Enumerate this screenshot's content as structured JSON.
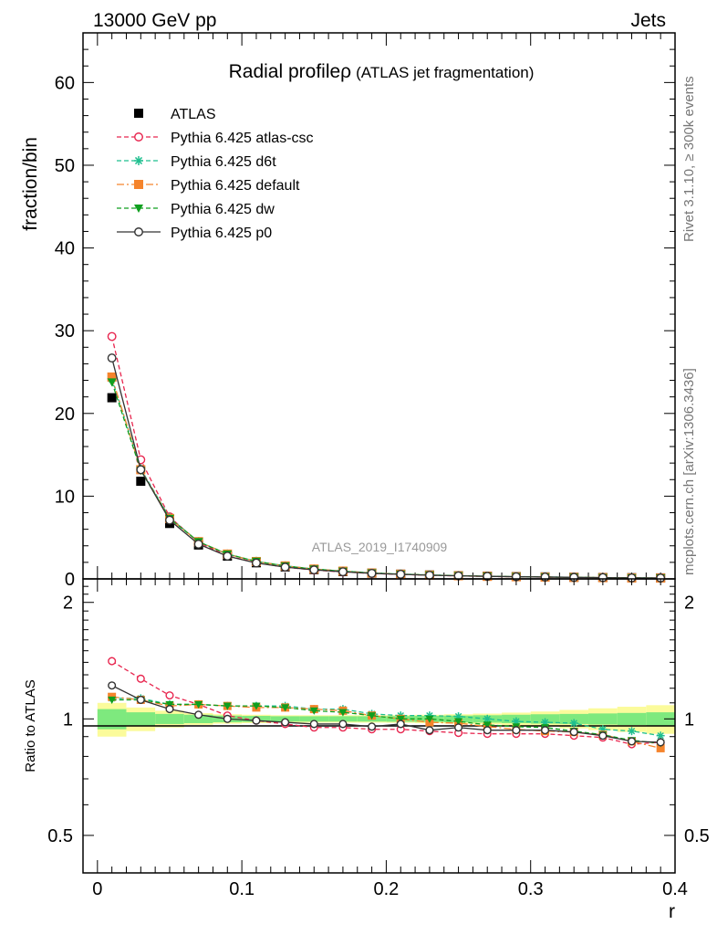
{
  "header": {
    "left": "13000 GeV pp",
    "right": "Jets"
  },
  "side_labels": {
    "rivet": "Rivet 3.1.10, ≥ 300k events",
    "mcplots": "mcplots.cern.ch [arXiv:1306.3436]"
  },
  "analysis_id": "ATLAS_2019_I1740909",
  "chart_data": [
    {
      "panel": "main",
      "type": "line",
      "title": "Radial profile",
      "title_symbol": "ρ",
      "title_suffix": "(ATLAS jet fragmentation)",
      "ylabel": "fraction/bin",
      "ylim": [
        0,
        66
      ],
      "yticks": [
        0,
        10,
        20,
        30,
        40,
        50,
        60
      ],
      "xlim": [
        -0.01,
        0.4
      ],
      "x": [
        0.01,
        0.03,
        0.05,
        0.07,
        0.09,
        0.11,
        0.13,
        0.15,
        0.17,
        0.19,
        0.21,
        0.23,
        0.25,
        0.27,
        0.29,
        0.31,
        0.33,
        0.35,
        0.37,
        0.39
      ],
      "legend_position": "top-left",
      "series": [
        {
          "name": "ATLAS",
          "color": "#000000",
          "marker": "square",
          "line": "none",
          "values": [
            21.9,
            11.8,
            6.7,
            4.1,
            2.75,
            1.95,
            1.45,
            1.12,
            0.88,
            0.7,
            0.57,
            0.47,
            0.39,
            0.33,
            0.28,
            0.24,
            0.2,
            0.17,
            0.14,
            0.12
          ]
        },
        {
          "name": "Pythia 6.425 atlas-csc",
          "color": "#e8264f",
          "marker": "open-circle",
          "line": "dashed",
          "values": [
            29.3,
            14.4,
            7.5,
            4.4,
            2.8,
            1.95,
            1.42,
            1.07,
            0.84,
            0.66,
            0.54,
            0.44,
            0.36,
            0.3,
            0.26,
            0.22,
            0.18,
            0.155,
            0.12,
            0.105
          ]
        },
        {
          "name": "Pythia 6.425 d6t",
          "color": "#1fbf8f",
          "marker": "asterisk",
          "line": "dashed",
          "values": [
            24.2,
            13.3,
            7.4,
            4.5,
            3.0,
            2.12,
            1.58,
            1.2,
            0.95,
            0.72,
            0.58,
            0.48,
            0.4,
            0.33,
            0.28,
            0.235,
            0.197,
            0.16,
            0.13,
            0.11
          ]
        },
        {
          "name": "Pythia 6.425 default",
          "color": "#f5842c",
          "marker": "square",
          "line": "dashdot",
          "values": [
            24.4,
            13.2,
            7.3,
            4.5,
            3.0,
            2.1,
            1.57,
            1.19,
            0.94,
            0.71,
            0.57,
            0.46,
            0.38,
            0.31,
            0.26,
            0.22,
            0.185,
            0.155,
            0.12,
            0.1
          ]
        },
        {
          "name": "Pythia 6.425 dw",
          "color": "#0f9f1f",
          "marker": "triangle-down",
          "line": "dashed",
          "values": [
            23.8,
            13.1,
            7.3,
            4.5,
            3.0,
            2.12,
            1.56,
            1.18,
            0.93,
            0.72,
            0.57,
            0.47,
            0.385,
            0.32,
            0.27,
            0.23,
            0.19,
            0.155,
            0.125,
            0.105
          ]
        },
        {
          "name": "Pythia 6.425 p0",
          "color": "#333333",
          "marker": "open-circle",
          "line": "solid",
          "values": [
            26.7,
            13.2,
            7.1,
            4.2,
            2.75,
            1.92,
            1.42,
            1.09,
            0.86,
            0.67,
            0.555,
            0.44,
            0.37,
            0.31,
            0.26,
            0.225,
            0.185,
            0.155,
            0.12,
            0.105
          ]
        }
      ]
    },
    {
      "panel": "ratio",
      "type": "line",
      "ylabel": "Ratio to ATLAS",
      "xlabel": "r",
      "scale": "log",
      "ylim": [
        0.4,
        2.3
      ],
      "yticks": [
        0.5,
        1,
        2
      ],
      "xticks": [
        0,
        0.1,
        0.2,
        0.3,
        0.4
      ],
      "x": [
        0.01,
        0.03,
        0.05,
        0.07,
        0.09,
        0.11,
        0.13,
        0.15,
        0.17,
        0.19,
        0.21,
        0.23,
        0.25,
        0.27,
        0.29,
        0.31,
        0.33,
        0.35,
        0.37,
        0.39
      ],
      "band_inner": [
        0.06,
        0.04,
        0.03,
        0.025,
        0.02,
        0.018,
        0.016,
        0.016,
        0.016,
        0.016,
        0.017,
        0.018,
        0.02,
        0.022,
        0.025,
        0.028,
        0.03,
        0.033,
        0.036,
        0.04
      ],
      "band_outer": [
        0.1,
        0.07,
        0.05,
        0.035,
        0.028,
        0.025,
        0.022,
        0.022,
        0.022,
        0.022,
        0.023,
        0.025,
        0.028,
        0.032,
        0.038,
        0.045,
        0.055,
        0.065,
        0.075,
        0.085
      ],
      "band_colors": {
        "inner": "#7ee97e",
        "outer": "#fbfb9b"
      },
      "series": [
        {
          "name": "Pythia 6.425 atlas-csc",
          "color": "#e8264f",
          "marker": "open-circle",
          "line": "dashed",
          "values": [
            1.41,
            1.27,
            1.15,
            1.09,
            1.02,
            0.99,
            0.97,
            0.95,
            0.95,
            0.94,
            0.94,
            0.93,
            0.92,
            0.915,
            0.915,
            0.915,
            0.905,
            0.895,
            0.86,
            0.87
          ]
        },
        {
          "name": "Pythia 6.425 d6t",
          "color": "#1fbf8f",
          "marker": "asterisk",
          "line": "dashed",
          "values": [
            1.13,
            1.13,
            1.09,
            1.09,
            1.08,
            1.08,
            1.08,
            1.06,
            1.06,
            1.03,
            1.02,
            1.02,
            1.015,
            1.0,
            0.985,
            0.98,
            0.975,
            0.94,
            0.93,
            0.905
          ]
        },
        {
          "name": "Pythia 6.425 default",
          "color": "#f5842c",
          "marker": "square",
          "line": "dashdot",
          "values": [
            1.14,
            1.12,
            1.08,
            1.09,
            1.08,
            1.07,
            1.07,
            1.06,
            1.05,
            1.02,
            1.0,
            0.98,
            0.975,
            0.955,
            0.94,
            0.93,
            0.925,
            0.91,
            0.875,
            0.84
          ]
        },
        {
          "name": "Pythia 6.425 dw",
          "color": "#0f9f1f",
          "marker": "triangle-down",
          "line": "dashed",
          "values": [
            1.12,
            1.12,
            1.09,
            1.09,
            1.08,
            1.08,
            1.07,
            1.05,
            1.04,
            1.02,
            1.0,
            1.0,
            0.985,
            0.965,
            0.955,
            0.95,
            0.93,
            0.91,
            0.88,
            0.865
          ]
        },
        {
          "name": "Pythia 6.425 p0",
          "color": "#333333",
          "marker": "open-circle",
          "line": "solid",
          "values": [
            1.22,
            1.12,
            1.06,
            1.025,
            1.0,
            0.99,
            0.98,
            0.97,
            0.97,
            0.955,
            0.97,
            0.935,
            0.95,
            0.935,
            0.935,
            0.935,
            0.925,
            0.905,
            0.875,
            0.87
          ]
        }
      ]
    }
  ]
}
